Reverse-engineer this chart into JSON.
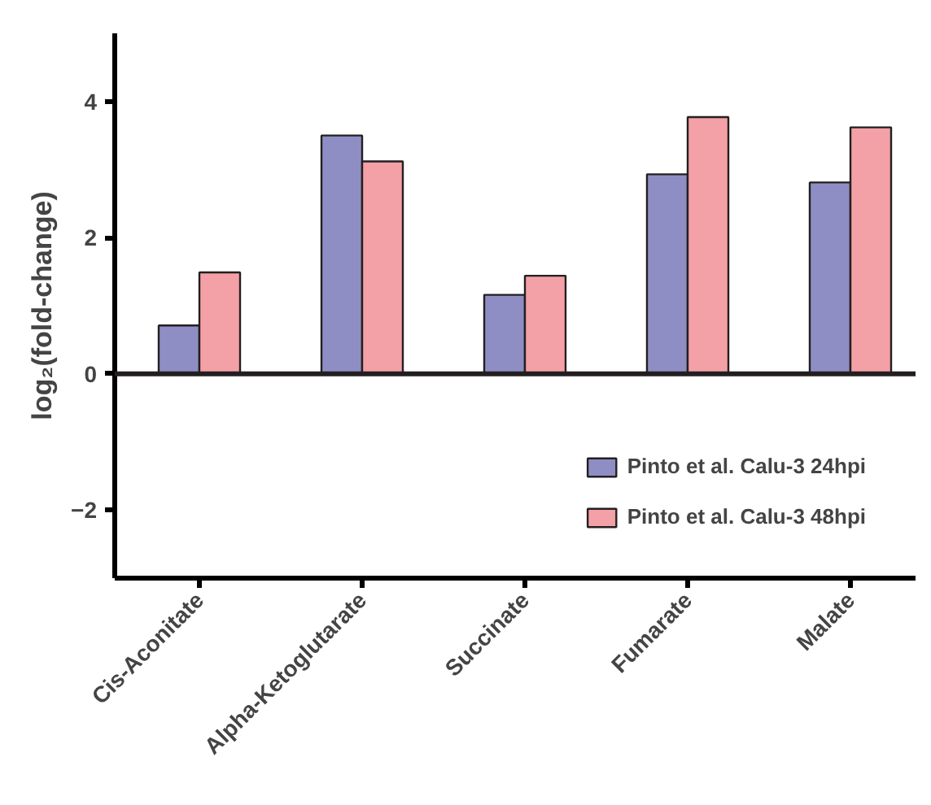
{
  "chart_data": {
    "type": "bar",
    "ylabel": "log₂(fold-change)",
    "categories": [
      "Cis-Aconitate",
      "Alpha-Ketoglutarate",
      "Succinate",
      "Fumarate",
      "Malate"
    ],
    "series": [
      {
        "name": "Pinto et al. Calu-3 24hpi",
        "color": "#8f8ec4",
        "values": [
          0.71,
          3.5,
          1.16,
          2.93,
          2.81
        ]
      },
      {
        "name": "Pinto et al. Calu-3 48hpi",
        "color": "#f3a0a6",
        "values": [
          1.49,
          3.12,
          1.44,
          3.77,
          3.62
        ]
      }
    ],
    "ylim": [
      -3,
      5
    ],
    "yticks": [
      -2,
      0,
      2,
      4
    ],
    "grid": false,
    "legend": "bottom right",
    "ref_lines": [
      {
        "axis": "y",
        "value": 0,
        "color": "#231f20"
      }
    ]
  }
}
